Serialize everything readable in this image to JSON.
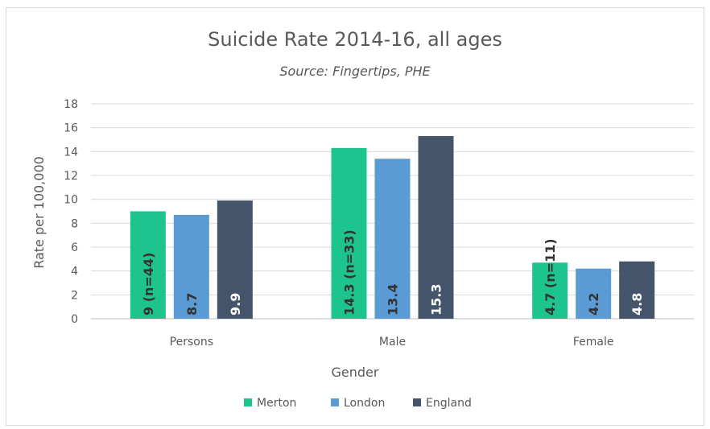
{
  "chart_data": {
    "type": "bar",
    "title": "Suicide Rate 2014-16, all ages",
    "subtitle": "Source: Fingertips, PHE",
    "xlabel": "Gender",
    "ylabel": "Rate per 100,000",
    "ylim": [
      0,
      18
    ],
    "yticks": [
      "0",
      "2",
      "4",
      "6",
      "8",
      "10",
      "12",
      "14",
      "16",
      "18"
    ],
    "grid": true,
    "legend_position": "bottom",
    "categories": [
      "Persons",
      "Male",
      "Female"
    ],
    "series": [
      {
        "name": "Merton",
        "color": "#1ec48e",
        "label_color": "#333333",
        "values": [
          9,
          14.3,
          4.7
        ],
        "labels": [
          "9 (n=44)",
          "14.3 (n=33)",
          "4.7 (n=11)"
        ]
      },
      {
        "name": "London",
        "color": "#5b9bd5",
        "label_color": "#333333",
        "values": [
          8.7,
          13.4,
          4.2
        ],
        "labels": [
          "8.7",
          "13.4",
          "4.2"
        ]
      },
      {
        "name": "England",
        "color": "#44546a",
        "label_color": "#ffffff",
        "values": [
          9.9,
          15.3,
          4.8
        ],
        "labels": [
          "9.9",
          "15.3",
          "4.8"
        ]
      }
    ]
  }
}
